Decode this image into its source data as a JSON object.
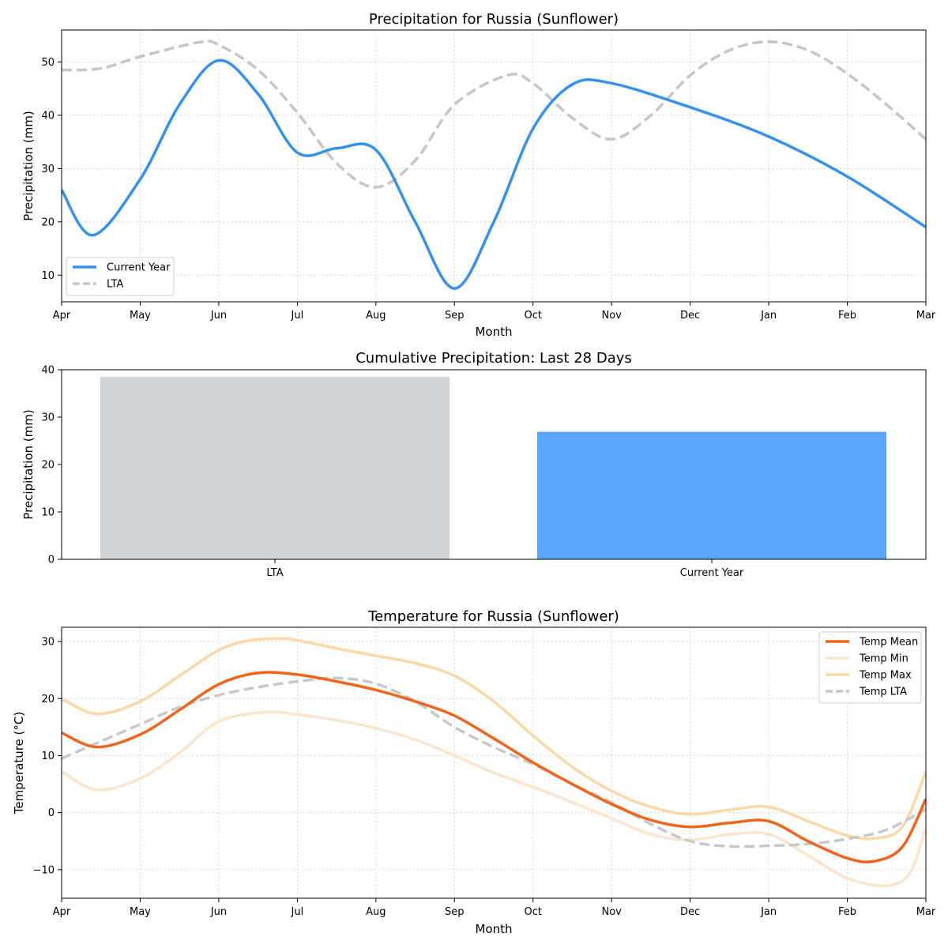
{
  "chart_data": [
    {
      "type": "line",
      "title": "Precipitation for Russia (Sunflower)",
      "xlabel": "Month",
      "ylabel": "Precipitation (mm)",
      "x_ticks": [
        "Apr",
        "May",
        "Jun",
        "Jul",
        "Aug",
        "Sep",
        "Oct",
        "Nov",
        "Dec",
        "Jan",
        "Feb",
        "Mar"
      ],
      "xlim": [
        0,
        11
      ],
      "ylim": [
        5,
        56
      ],
      "y_ticks": [
        10,
        20,
        30,
        40,
        50
      ],
      "grid": true,
      "legend_position": "lower-left",
      "series": [
        {
          "name": "Current Year",
          "color": "#3391ef",
          "style": "solid",
          "x": [
            0,
            0.4,
            1,
            1.5,
            2,
            2.5,
            3,
            3.5,
            4,
            4.5,
            5,
            5.5,
            6,
            6.5,
            7,
            8,
            9,
            10,
            11
          ],
          "y": [
            26,
            17.5,
            28,
            42,
            50.3,
            44,
            33,
            33.8,
            33.5,
            20,
            7.5,
            20,
            37.5,
            45.8,
            46,
            41.5,
            36,
            28.5,
            19
          ]
        },
        {
          "name": "LTA",
          "color": "#c4c6c8",
          "style": "dashed",
          "x": [
            0,
            0.5,
            1,
            1.75,
            2,
            2.5,
            3,
            3.5,
            4,
            4.5,
            5,
            5.67,
            6,
            6.5,
            7,
            7.5,
            8,
            8.5,
            9,
            9.5,
            10,
            10.5,
            11
          ],
          "y": [
            48.5,
            48.8,
            51,
            53.7,
            53.2,
            48.5,
            40.5,
            31,
            26.5,
            31.5,
            42,
            47.5,
            46,
            39.5,
            35.5,
            40,
            47.5,
            52.2,
            53.8,
            52.2,
            47.8,
            42,
            35.5
          ]
        }
      ]
    },
    {
      "type": "bar",
      "title": "Cumulative Precipitation: Last 28 Days",
      "ylabel": "Precipitation (mm)",
      "categories": [
        "LTA",
        "Current Year"
      ],
      "values": [
        38.5,
        26.9
      ],
      "colors": [
        "#d1d5d8",
        "#58a6fc"
      ],
      "ylim": [
        0,
        40
      ],
      "y_ticks": [
        0,
        10,
        20,
        30,
        40
      ],
      "grid": false
    },
    {
      "type": "line",
      "title": "Temperature for Russia (Sunflower)",
      "xlabel": "Month",
      "ylabel": "Temperature (°C)",
      "x_ticks": [
        "Apr",
        "May",
        "Jun",
        "Jul",
        "Aug",
        "Sep",
        "Oct",
        "Nov",
        "Dec",
        "Jan",
        "Feb",
        "Mar"
      ],
      "xlim": [
        0,
        11
      ],
      "ylim": [
        -15,
        32.5
      ],
      "y_ticks": [
        -10,
        0,
        10,
        20,
        30
      ],
      "grid": true,
      "legend_position": "upper-right",
      "series": [
        {
          "name": "Temp Mean",
          "color": "#f26419",
          "style": "solid",
          "x": [
            0,
            0.45,
            1,
            1.5,
            2,
            2.5,
            3,
            3.5,
            4,
            4.5,
            5,
            5.5,
            6,
            6.5,
            7,
            7.5,
            8,
            8.5,
            9,
            9.5,
            10,
            10.35,
            10.7,
            11
          ],
          "y": [
            14,
            11.5,
            13.7,
            18,
            22.5,
            24.5,
            24.2,
            23,
            21.5,
            19.5,
            17,
            13,
            8.8,
            5,
            1.5,
            -1.3,
            -2.5,
            -1.8,
            -1.5,
            -5,
            -8,
            -8.5,
            -6,
            2.4
          ]
        },
        {
          "name": "Temp Min",
          "color": "#fde4cc",
          "style": "solid",
          "x": [
            0,
            0.45,
            1,
            1.5,
            2,
            2.6,
            3,
            3.5,
            4,
            4.5,
            5,
            5.5,
            6,
            6.5,
            7,
            7.5,
            8,
            8.5,
            9,
            9.5,
            10,
            10.5,
            10.8,
            11
          ],
          "y": [
            7.2,
            4,
            6,
            10.5,
            16,
            17.6,
            17.2,
            16.2,
            14.8,
            12.8,
            10,
            7,
            4.5,
            1.8,
            -1,
            -3.8,
            -4.8,
            -3.8,
            -3.8,
            -7.5,
            -11.5,
            -12.8,
            -10.5,
            -2.5
          ]
        },
        {
          "name": "Temp Max",
          "color": "#fbd9a4",
          "style": "solid",
          "x": [
            0,
            0.45,
            1,
            1.5,
            2,
            2.4,
            2.8,
            3,
            3.5,
            4,
            4.5,
            5,
            5.5,
            6,
            6.5,
            7,
            7.5,
            8,
            8.5,
            9,
            9.5,
            10,
            10.35,
            10.7,
            11
          ],
          "y": [
            20,
            17.3,
            19.5,
            24,
            28.5,
            30.2,
            30.5,
            30.2,
            28.8,
            27.5,
            26.2,
            24,
            19.5,
            13.5,
            8,
            3.8,
            1,
            -0.3,
            0.5,
            1,
            -1.5,
            -4,
            -4.5,
            -2.5,
            7.2
          ]
        },
        {
          "name": "Temp LTA",
          "color": "#c6c8ca",
          "style": "dashed",
          "x": [
            0,
            0.5,
            1,
            1.5,
            2,
            2.5,
            3,
            3.5,
            4,
            4.5,
            5,
            5.5,
            6,
            6.5,
            7,
            7.5,
            8,
            8.5,
            9,
            9.5,
            10,
            10.5,
            11
          ],
          "y": [
            9.5,
            12.5,
            15.5,
            18.5,
            20.6,
            22,
            23,
            23.6,
            22.6,
            19.5,
            15,
            11.5,
            8.5,
            5,
            1.8,
            -2,
            -5,
            -5.9,
            -5.8,
            -5.5,
            -4.6,
            -3,
            0.6
          ]
        }
      ]
    }
  ]
}
